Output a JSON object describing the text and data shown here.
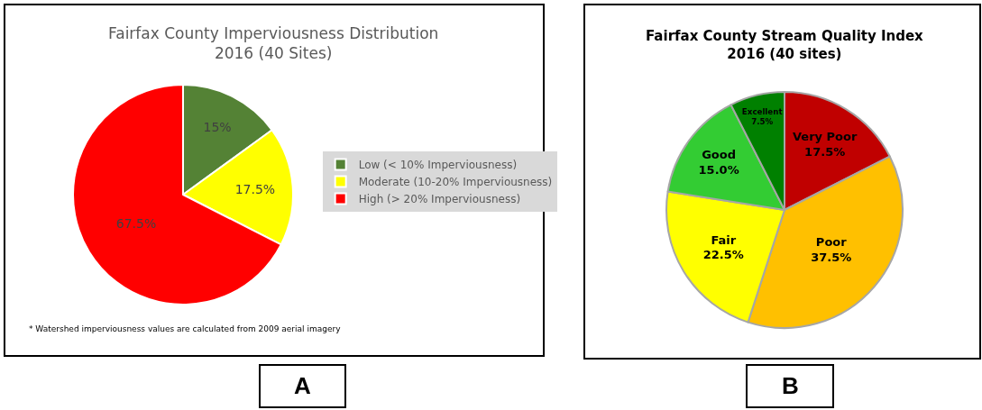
{
  "chart_data": [
    {
      "type": "pie",
      "title": "Fairfax County Imperviousness Distribution\n2016 (40 Sites)",
      "categories": [
        "Low (< 10% Imperviousness)",
        "Moderate (10-20% Imperviousness)",
        "High (> 20% Imperviousness)"
      ],
      "values": [
        15,
        17.5,
        67.5
      ],
      "colors": [
        "#548235",
        "#ffff00",
        "#ff0000"
      ],
      "value_labels": [
        "15%",
        "17.5%",
        "67.5%"
      ],
      "legend": "right",
      "annotations": [
        "* Watershed imperviousness values are calculated from 2009 aerial imagery",
        "A"
      ]
    },
    {
      "type": "pie",
      "title": "Fairfax County Stream Quality Index\n2016 (40 sites)",
      "categories": [
        "Very Poor",
        "Poor",
        "Fair",
        "Good",
        "Excellent"
      ],
      "values": [
        17.5,
        37.5,
        22.5,
        15.0,
        7.5
      ],
      "colors": [
        "#c00000",
        "#ffc000",
        "#ffff00",
        "#33cc33",
        "#008000"
      ],
      "value_labels": [
        "17.5%",
        "37.5%",
        "22.5%",
        "15.0%",
        "7.5%"
      ],
      "legend": false,
      "annotations": [
        "B"
      ]
    }
  ]
}
